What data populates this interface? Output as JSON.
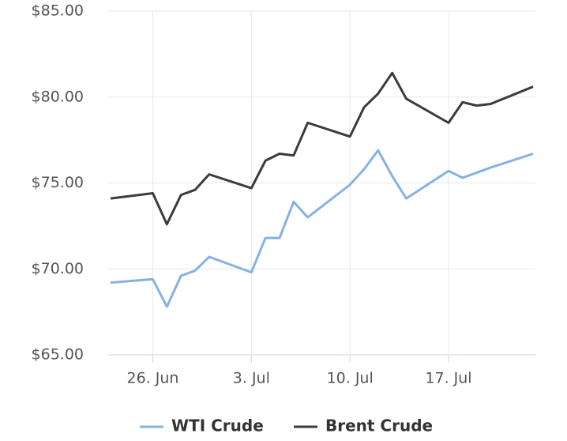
{
  "chart_data": {
    "type": "line",
    "x": [
      "23. Jun",
      "26. Jun",
      "27. Jun",
      "28. Jun",
      "29. Jun",
      "30. Jun",
      "3. Jul",
      "4. Jul",
      "5. Jul",
      "6. Jul",
      "7. Jul",
      "10. Jul",
      "11. Jul",
      "12. Jul",
      "13. Jul",
      "14. Jul",
      "17. Jul",
      "18. Jul",
      "19. Jul",
      "20. Jul",
      "23. Jul"
    ],
    "series": [
      {
        "name": "WTI Crude",
        "color": "#86b2e2",
        "values": [
          69.2,
          69.4,
          67.8,
          69.6,
          69.9,
          70.7,
          69.8,
          71.8,
          71.8,
          73.9,
          73.0,
          74.9,
          75.8,
          76.9,
          75.4,
          74.1,
          75.7,
          75.3,
          75.6,
          75.9,
          76.7
        ]
      },
      {
        "name": "Brent Crude",
        "color": "#3b3b3e",
        "values": [
          74.1,
          74.4,
          72.6,
          74.3,
          74.6,
          75.5,
          74.7,
          76.3,
          76.7,
          76.6,
          78.5,
          77.7,
          79.4,
          80.2,
          81.4,
          79.9,
          78.5,
          79.7,
          79.5,
          79.6,
          80.6
        ]
      }
    ],
    "ylim": [
      65,
      85
    ],
    "yticks": [
      {
        "value": 65,
        "label": "$65.00"
      },
      {
        "value": 70,
        "label": "$70.00"
      },
      {
        "value": 75,
        "label": "$75.00"
      },
      {
        "value": 80,
        "label": "$80.00"
      },
      {
        "value": 85,
        "label": "$85.00"
      }
    ],
    "xticks": [
      "26. Jun",
      "3. Jul",
      "10. Jul",
      "17. Jul"
    ],
    "grid": true,
    "legend": "bottom"
  }
}
